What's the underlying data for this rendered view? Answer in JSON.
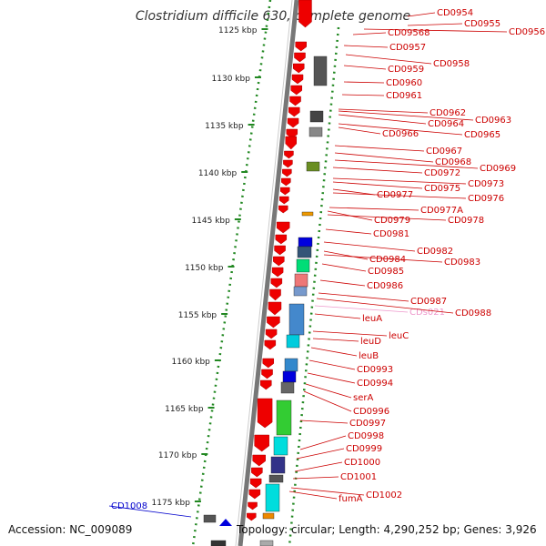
{
  "title": "Clostridium difficile 630, complete genome",
  "footer": {
    "accession": "Accession: NC_009089",
    "summary": "Topology: circular; Length: 4,290,252 bp; Genes: 3,926"
  },
  "colors": {
    "gene_label": "#cc0000",
    "pseudo_label": "#ee99cc",
    "other_label": "#0000cc",
    "forward_arrow": "#ee0000",
    "scale_tick": "#228822"
  },
  "scale_labels": [
    "1125 kbp",
    "1130 kbp",
    "1135 kbp",
    "1140 kbp",
    "1145 kbp",
    "1150 kbp",
    "1155 kbp",
    "1160 kbp",
    "1165 kbp",
    "1170 kbp",
    "1175 kbp"
  ],
  "gene_labels": [
    {
      "text": "CD0954",
      "kind": "gene"
    },
    {
      "text": "CD0955",
      "kind": "gene"
    },
    {
      "text": "CD09568",
      "kind": "gene"
    },
    {
      "text": "CD0956",
      "kind": "gene"
    },
    {
      "text": "CD0957",
      "kind": "gene"
    },
    {
      "text": "CD0958",
      "kind": "gene"
    },
    {
      "text": "CD0959",
      "kind": "gene"
    },
    {
      "text": "CD0960",
      "kind": "gene"
    },
    {
      "text": "CD0961",
      "kind": "gene"
    },
    {
      "text": "CD0962",
      "kind": "gene"
    },
    {
      "text": "CD0963",
      "kind": "gene"
    },
    {
      "text": "CD0964",
      "kind": "gene"
    },
    {
      "text": "CD0966",
      "kind": "gene"
    },
    {
      "text": "CD0965",
      "kind": "gene"
    },
    {
      "text": "CD0967",
      "kind": "gene"
    },
    {
      "text": "CD0968",
      "kind": "gene"
    },
    {
      "text": "CD0969",
      "kind": "gene"
    },
    {
      "text": "CD0972",
      "kind": "gene"
    },
    {
      "text": "CD0973",
      "kind": "gene"
    },
    {
      "text": "CD0975",
      "kind": "gene"
    },
    {
      "text": "CD0977",
      "kind": "gene"
    },
    {
      "text": "CD0976",
      "kind": "gene"
    },
    {
      "text": "CD0977A",
      "kind": "gene"
    },
    {
      "text": "CD0979",
      "kind": "gene"
    },
    {
      "text": "CD0978",
      "kind": "gene"
    },
    {
      "text": "CD0981",
      "kind": "gene"
    },
    {
      "text": "CD0982",
      "kind": "gene"
    },
    {
      "text": "CD0984",
      "kind": "gene"
    },
    {
      "text": "CD0983",
      "kind": "gene"
    },
    {
      "text": "CD0985",
      "kind": "gene"
    },
    {
      "text": "CD0986",
      "kind": "gene"
    },
    {
      "text": "CD0987",
      "kind": "gene"
    },
    {
      "text": "CDs021",
      "kind": "pseudo"
    },
    {
      "text": "CD0988",
      "kind": "gene"
    },
    {
      "text": "leuA",
      "kind": "gene"
    },
    {
      "text": "leuC",
      "kind": "gene"
    },
    {
      "text": "leuD",
      "kind": "gene"
    },
    {
      "text": "leuB",
      "kind": "gene"
    },
    {
      "text": "CD0993",
      "kind": "gene"
    },
    {
      "text": "CD0994",
      "kind": "gene"
    },
    {
      "text": "serA",
      "kind": "gene"
    },
    {
      "text": "CD0996",
      "kind": "gene"
    },
    {
      "text": "CD0997",
      "kind": "gene"
    },
    {
      "text": "CD0998",
      "kind": "gene"
    },
    {
      "text": "CD0999",
      "kind": "gene"
    },
    {
      "text": "CD1000",
      "kind": "gene"
    },
    {
      "text": "CD1001",
      "kind": "gene"
    },
    {
      "text": "CD1002",
      "kind": "gene"
    },
    {
      "text": "fumA",
      "kind": "gene"
    },
    {
      "text": "CD1008",
      "kind": "other"
    }
  ]
}
